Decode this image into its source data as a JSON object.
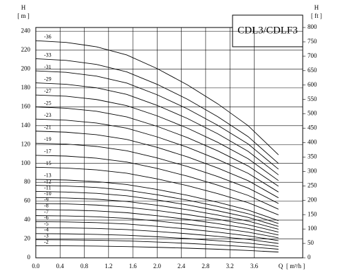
{
  "chart_data": {
    "type": "line",
    "title": "CDL3/CDLF3",
    "y_label": "H",
    "y_unit": "[ m ]",
    "y2_label": "H",
    "y2_unit": "[ ft ]",
    "x_label": "Q",
    "x_unit": "[ m³/h ]",
    "x": [
      0,
      0.5,
      1,
      1.5,
      2,
      2.5,
      3,
      3.5,
      4
    ],
    "xlim": [
      0,
      4.4
    ],
    "xticks": [
      {
        "value": 0,
        "label": "0.0"
      },
      0.4,
      0.8,
      1.2,
      1.6,
      {
        "value": 2,
        "label": "2.0"
      },
      2.4,
      2.8,
      3.2,
      3.6
    ],
    "ylim": [
      0,
      244
    ],
    "yticks": [
      0,
      20,
      40,
      60,
      80,
      100,
      120,
      140,
      160,
      180,
      200,
      220,
      240
    ],
    "y2lim": [
      0,
      800
    ],
    "y2ticks": [
      0,
      50,
      100,
      150,
      200,
      250,
      300,
      350,
      400,
      450,
      500,
      550,
      600,
      650,
      700,
      750,
      800
    ],
    "grid": true,
    "color": "#000000",
    "series": [
      {
        "name": "-2",
        "values": [
          12.8,
          12.7,
          12.4,
          11.9,
          11.1,
          10.2,
          9.1,
          7.8,
          6.1
        ]
      },
      {
        "name": "-3",
        "values": [
          19.2,
          19.0,
          18.6,
          17.9,
          16.7,
          15.3,
          13.6,
          11.7,
          9.1
        ]
      },
      {
        "name": "-4",
        "values": [
          25.6,
          25.4,
          24.8,
          23.9,
          22.3,
          20.4,
          18.1,
          15.6,
          12.1
        ]
      },
      {
        "name": "-5",
        "values": [
          32.0,
          31.7,
          31.1,
          29.9,
          27.9,
          25.5,
          22.7,
          19.5,
          15.2
        ]
      },
      {
        "name": "-6",
        "values": [
          38.3,
          38.0,
          37.3,
          35.8,
          33.4,
          30.5,
          27.2,
          23.3,
          18.2
        ]
      },
      {
        "name": "-7",
        "values": [
          44.7,
          44.4,
          43.5,
          41.8,
          39.0,
          35.6,
          31.7,
          27.2,
          21.2
        ]
      },
      {
        "name": "-8",
        "values": [
          51.1,
          50.7,
          49.7,
          47.8,
          44.6,
          40.7,
          36.2,
          31.1,
          24.2
        ]
      },
      {
        "name": "-9",
        "values": [
          57.5,
          57.1,
          55.9,
          53.7,
          50.1,
          45.8,
          40.8,
          35.0,
          27.3
        ]
      },
      {
        "name": "-10",
        "values": [
          63.9,
          63.4,
          62.1,
          59.7,
          55.7,
          50.9,
          45.3,
          38.9,
          30.3
        ]
      },
      {
        "name": "-11",
        "values": [
          70.3,
          69.7,
          68.3,
          65.7,
          61.3,
          56.0,
          49.8,
          42.8,
          33.3
        ]
      },
      {
        "name": "-12",
        "values": [
          76.7,
          76.1,
          74.5,
          71.6,
          66.8,
          61.1,
          54.4,
          46.7,
          36.4
        ]
      },
      {
        "name": "-13",
        "values": [
          83.1,
          82.4,
          80.7,
          77.6,
          72.4,
          66.2,
          58.9,
          50.6,
          39.4
        ]
      },
      {
        "name": "-15",
        "values": [
          95.9,
          95.1,
          93.2,
          89.6,
          83.6,
          76.4,
          68.0,
          58.4,
          45.5
        ]
      },
      {
        "name": "-17",
        "values": [
          108.6,
          107.8,
          105.6,
          101.5,
          94.7,
          86.5,
          77.0,
          66.1,
          51.5
        ]
      },
      {
        "name": "-19",
        "values": [
          121.4,
          120.5,
          118.0,
          113.4,
          105.8,
          96.7,
          86.1,
          73.9,
          57.6
        ]
      },
      {
        "name": "-21",
        "values": [
          134.2,
          133.1,
          130.4,
          125.4,
          117.0,
          106.9,
          95.1,
          81.7,
          63.6
        ]
      },
      {
        "name": "-23",
        "values": [
          147.0,
          145.8,
          142.8,
          137.3,
          128.1,
          117.1,
          104.2,
          89.5,
          69.7
        ]
      },
      {
        "name": "-25",
        "values": [
          159.8,
          158.5,
          155.3,
          149.3,
          139.3,
          127.3,
          113.3,
          97.3,
          75.8
        ]
      },
      {
        "name": "-27",
        "values": [
          172.5,
          171.2,
          167.7,
          161.2,
          150.4,
          137.4,
          122.3,
          105.0,
          81.8
        ]
      },
      {
        "name": "-29",
        "values": [
          185.3,
          183.9,
          180.1,
          173.1,
          161.5,
          147.6,
          131.4,
          112.8,
          87.9
        ]
      },
      {
        "name": "-31",
        "values": [
          198.1,
          196.5,
          192.5,
          185.1,
          172.7,
          157.8,
          140.4,
          120.6,
          93.9
        ]
      },
      {
        "name": "-33",
        "values": [
          210.9,
          209.2,
          204.9,
          197.0,
          183.8,
          168.0,
          149.5,
          128.4,
          100.0
        ]
      },
      {
        "name": "-36",
        "values": [
          230.0,
          228.2,
          223.6,
          214.9,
          200.5,
          183.2,
          163.1,
          140.0,
          109.1
        ]
      }
    ]
  }
}
